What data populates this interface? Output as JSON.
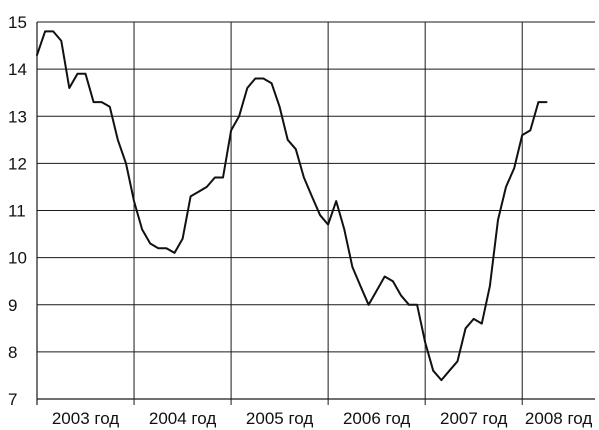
{
  "chart_data": {
    "type": "line",
    "title": "",
    "xlabel": "",
    "ylabel": "",
    "ylim": [
      7,
      15
    ],
    "yticks": [
      7,
      8,
      9,
      10,
      11,
      12,
      13,
      14,
      15
    ],
    "xlim": [
      2003,
      2008.75
    ],
    "year_labels": [
      "2003 год",
      "2004 год",
      "2005 год",
      "2006 год",
      "2007 год",
      "2008 год"
    ],
    "grid": {
      "vertical": true,
      "horizontal": true
    },
    "legend": "none",
    "line_color": "#111111",
    "series": [
      {
        "x": [
          2003.0,
          2003.083,
          2003.167,
          2003.25,
          2003.333,
          2003.417,
          2003.5,
          2003.583,
          2003.667,
          2003.75,
          2003.833,
          2003.917,
          2004.0,
          2004.083,
          2004.167,
          2004.25,
          2004.333,
          2004.417,
          2004.5,
          2004.583,
          2004.667,
          2004.75,
          2004.833,
          2004.917,
          2005.0,
          2005.083,
          2005.167,
          2005.25,
          2005.333,
          2005.417,
          2005.5,
          2005.583,
          2005.667,
          2005.75,
          2005.833,
          2005.917,
          2006.0,
          2006.083,
          2006.167,
          2006.25,
          2006.333,
          2006.417,
          2006.5,
          2006.583,
          2006.667,
          2006.75,
          2006.833,
          2006.917,
          2007.0,
          2007.083,
          2007.167,
          2007.25,
          2007.333,
          2007.417,
          2007.5,
          2007.583,
          2007.667,
          2007.75,
          2007.833,
          2007.917,
          2008.0,
          2008.083,
          2008.167,
          2008.25
        ],
        "y": [
          14.3,
          14.8,
          14.8,
          14.6,
          13.6,
          13.9,
          13.9,
          13.3,
          13.3,
          13.2,
          12.5,
          12.0,
          11.2,
          10.6,
          10.3,
          10.2,
          10.2,
          10.1,
          10.4,
          11.3,
          11.4,
          11.5,
          11.7,
          11.7,
          12.7,
          13.0,
          13.6,
          13.8,
          13.8,
          13.7,
          13.2,
          12.5,
          12.3,
          11.7,
          11.3,
          10.9,
          10.7,
          11.2,
          10.6,
          9.8,
          9.4,
          9.0,
          9.3,
          9.6,
          9.5,
          9.2,
          9.0,
          9.0,
          8.2,
          7.6,
          7.4,
          7.6,
          7.8,
          8.5,
          8.7,
          8.6,
          9.4,
          10.8,
          11.5,
          11.9,
          12.6,
          12.7,
          13.3,
          13.3
        ]
      }
    ]
  }
}
